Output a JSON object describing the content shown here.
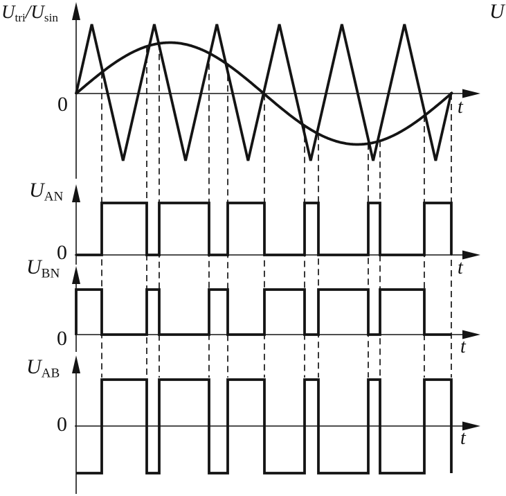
{
  "figure": {
    "y_labels": {
      "panel1": {
        "u1": "U",
        "sub1": "tri",
        "slash": "/",
        "u2": "U",
        "sub2": "sin"
      },
      "panel2": {
        "u": "U",
        "sub": "AN"
      },
      "panel3": {
        "u": "U",
        "sub": "BN"
      },
      "panel4": {
        "u": "U",
        "sub": "AB"
      }
    },
    "origin_label": "0",
    "time_label": "t",
    "corner_label": "U"
  },
  "chart_data": {
    "type": "line",
    "title": "",
    "description": "Sinusoidal PWM (SPWM) waveform diagram: triangular carrier U_tri compared with sinusoidal reference U_sin generates pole voltages U_AN (high when U_sin > U_tri), U_BN (complement of U_AN) and line voltage U_AB = U_AN - U_BN. Vertical dashed gridlines mark the carrier/reference crossing instants.",
    "x_axis": {
      "label": "t",
      "range_norm": [
        0,
        1
      ],
      "grid": "vertical dashed at switch times"
    },
    "switch_times_norm": [
      0.0683,
      0.1882,
      0.2214,
      0.3542,
      0.4041,
      0.5018,
      0.6089,
      0.6458,
      0.7786,
      0.81,
      0.928,
      1.0
    ],
    "panels": [
      {
        "ylabel": "U_tri/U_sin",
        "origin": "0",
        "series": [
          {
            "name": "U_tri",
            "kind": "triangular-carrier",
            "cycles": 6,
            "amplitude": 1.0,
            "starts_at_origin": true
          },
          {
            "name": "U_sin",
            "kind": "sine-reference",
            "cycles": 1,
            "amplitude": 0.74,
            "starts_at_origin": true
          }
        ]
      },
      {
        "ylabel": "U_AN",
        "origin": "0",
        "series": [
          {
            "name": "U_AN",
            "kind": "pulse",
            "levels": [
              0,
              1
            ],
            "start_level": 0,
            "toggle_count": 12
          }
        ]
      },
      {
        "ylabel": "U_BN",
        "origin": "0",
        "series": [
          {
            "name": "U_BN",
            "kind": "pulse",
            "levels": [
              0,
              1
            ],
            "start_level": 1,
            "toggle_count": 11
          }
        ]
      },
      {
        "ylabel": "U_AB",
        "origin": "0",
        "series": [
          {
            "name": "U_AB",
            "kind": "pulse",
            "levels": [
              -1,
              1
            ],
            "start_level": -1,
            "toggle_count": 12,
            "final_drop": true
          }
        ]
      }
    ],
    "line_color": "#141414"
  }
}
